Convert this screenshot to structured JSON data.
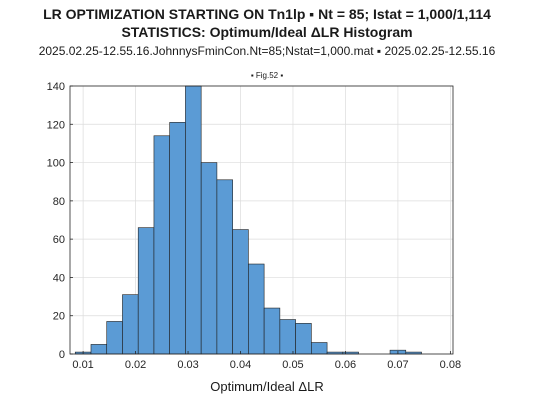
{
  "header": {
    "line1": "LR OPTIMIZATION STARTING ON Tn1lp ▪ Nt = 85; Istat = 1,000/1,114",
    "line2": "STATISTICS: Optimum/Ideal ΔLR Histogram",
    "line3": "2025.02.25-12.55.16.JohnnysFminCon.Nt=85;Nstat=1,000.mat ▪ 2025.02.25-12.55.16",
    "fig_tag": "▪ Fig.52 ▪"
  },
  "chart_data": {
    "type": "bar",
    "title": "STATISTICS: Optimum/Ideal ΔLR Histogram",
    "xlabel": "Optimum/Ideal ΔLR",
    "ylabel": "",
    "xlim": [
      0.0075,
      0.0805
    ],
    "ylim": [
      0,
      140
    ],
    "xticks": [
      0.01,
      0.02,
      0.03,
      0.04,
      0.05,
      0.06,
      0.07,
      0.08
    ],
    "xtick_labels": [
      "0.01",
      "0.02",
      "0.03",
      "0.04",
      "0.05",
      "0.06",
      "0.07",
      "0.08"
    ],
    "yticks": [
      0,
      20,
      40,
      60,
      80,
      100,
      120,
      140
    ],
    "ytick_labels": [
      "0",
      "20",
      "40",
      "60",
      "80",
      "100",
      "120",
      "140"
    ],
    "grid": true,
    "bar_color": "#5b9bd5",
    "bin_width": 0.003,
    "bin_edges_start": 0.0085,
    "values": [
      1,
      5,
      17,
      31,
      66,
      114,
      121,
      140,
      100,
      91,
      65,
      47,
      24,
      18,
      16,
      6,
      1,
      1,
      0,
      0,
      2,
      1
    ]
  }
}
